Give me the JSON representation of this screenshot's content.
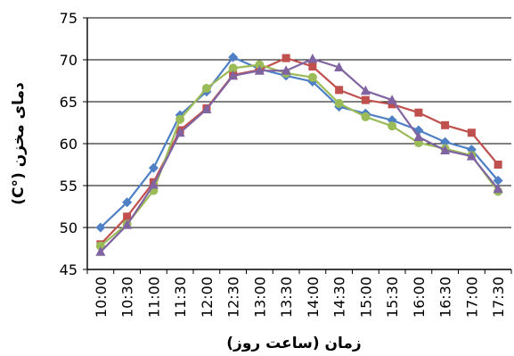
{
  "chart_data": {
    "type": "line",
    "title": "",
    "xlabel": "زمان (ساعت روز)",
    "ylabel": "دمای مخزن (°C)",
    "ylim": [
      45,
      75
    ],
    "yticks": [
      45,
      50,
      55,
      60,
      65,
      70,
      75
    ],
    "grid": "horizontal",
    "legend": "none",
    "categories": [
      "10:00",
      "10:30",
      "11:00",
      "11:30",
      "12:00",
      "12:30",
      "13:00",
      "13:30",
      "14:00",
      "14:30",
      "15:00",
      "15:30",
      "16:00",
      "16:30",
      "17:00",
      "17:30"
    ],
    "series": [
      {
        "color": "#4F7FC4",
        "marker": "diamond",
        "values": [
          50.0,
          53.0,
          57.1,
          63.4,
          66.2,
          70.3,
          68.9,
          68.1,
          67.4,
          64.4,
          63.6,
          62.8,
          61.6,
          60.2,
          59.3,
          55.6
        ]
      },
      {
        "color": "#C0504D",
        "marker": "square",
        "values": [
          48.0,
          51.3,
          55.4,
          61.6,
          64.2,
          68.2,
          68.8,
          70.2,
          69.2,
          66.4,
          65.2,
          64.7,
          63.7,
          62.2,
          61.3,
          57.5
        ]
      },
      {
        "color": "#9BBB59",
        "marker": "circle",
        "values": [
          47.8,
          50.4,
          54.4,
          62.9,
          66.6,
          69.0,
          69.4,
          68.4,
          67.9,
          64.8,
          63.2,
          62.1,
          60.1,
          59.4,
          58.6,
          54.3
        ]
      },
      {
        "color": "#8064A2",
        "marker": "triangle",
        "values": [
          47.1,
          50.3,
          55.1,
          61.3,
          64.1,
          68.1,
          68.7,
          68.7,
          70.1,
          69.1,
          66.3,
          65.2,
          60.8,
          59.2,
          58.5,
          54.6
        ]
      }
    ]
  }
}
